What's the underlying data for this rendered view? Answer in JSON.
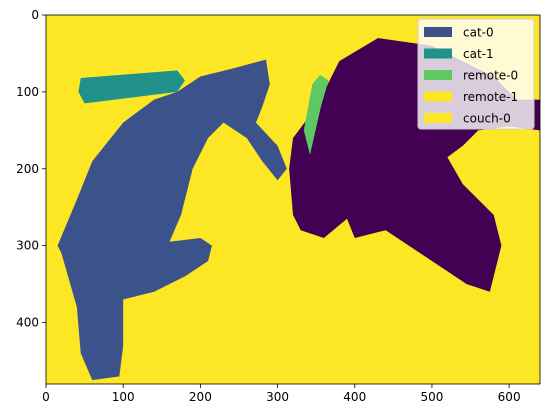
{
  "chart_data": {
    "type": "image",
    "xlim": [
      0,
      640
    ],
    "ylim": [
      480,
      0
    ],
    "xticks": [
      0,
      100,
      200,
      300,
      400,
      500,
      600
    ],
    "yticks": [
      0,
      100,
      200,
      300,
      400
    ],
    "background": "#fde725",
    "legend": "upper right",
    "series": [
      {
        "name": "cat-0",
        "color": "#3b528b"
      },
      {
        "name": "cat-1",
        "color": "#21918c"
      },
      {
        "name": "remote-0",
        "color": "#5ec962"
      },
      {
        "name": "remote-1",
        "color": "#fde725"
      },
      {
        "name": "couch-0",
        "color": "#fde725"
      }
    ]
  }
}
